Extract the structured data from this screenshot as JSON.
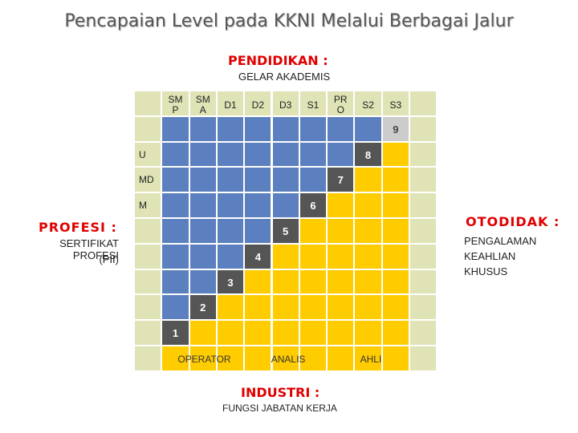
{
  "title": "Pencapaian Level pada KKNI Melalui Berbagai Jalur",
  "top": {
    "heading": "PENDIDIKAN :",
    "sub": "GELAR AKADEMIS"
  },
  "left": {
    "heading": "PROFESI :",
    "line1": "SERTIFIKAT PROFESI",
    "line2": "(PII)"
  },
  "right": {
    "heading": "OTODIDAK :",
    "line1": "PENGALAMAN",
    "line2": "KEAHLIAN",
    "line3": "KHUSUS"
  },
  "bottom": {
    "heading": "INDUSTRI :",
    "sub": "FUNGSI JABATAN KERJA",
    "labels": [
      "OPERATOR",
      "ANALIS",
      "AHLI"
    ]
  },
  "columns": [
    "SM\nP",
    "SM\nA",
    "D1",
    "D2",
    "D3",
    "S1",
    "PR\nO",
    "S2",
    "S3"
  ],
  "row_labels": [
    "U",
    "MD",
    "M"
  ],
  "levels": [
    "1",
    "2",
    "3",
    "4",
    "5",
    "6",
    "7",
    "8",
    "9"
  ],
  "colors": {
    "blue": "#5b7fbf",
    "yellow": "#ffcc00",
    "pale": "#dfe3b5",
    "red": "#e00000",
    "badge": "#555555"
  }
}
